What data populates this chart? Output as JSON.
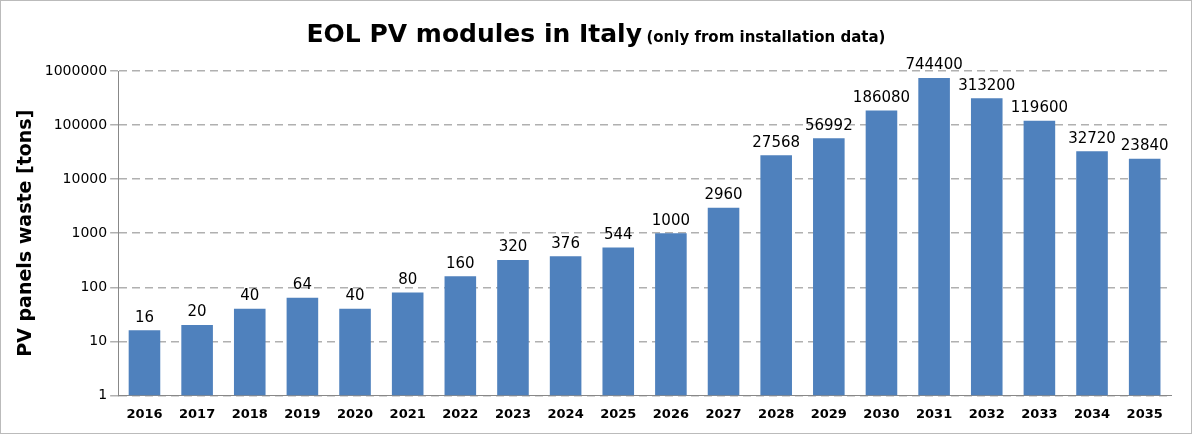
{
  "chart_data": {
    "type": "bar",
    "title": "EOL PV modules in Italy",
    "subtitle": "(only from installation data)",
    "ylabel": "PV panels waste [tons]",
    "categories": [
      "2016",
      "2017",
      "2018",
      "2019",
      "2020",
      "2021",
      "2022",
      "2023",
      "2024",
      "2025",
      "2026",
      "2027",
      "2028",
      "2029",
      "2030",
      "2031",
      "2032",
      "2033",
      "2034",
      "2035"
    ],
    "values": [
      16,
      20,
      40,
      64,
      40,
      80,
      160,
      320,
      376,
      544,
      1000,
      2960,
      27568,
      56992,
      186080,
      744400,
      313200,
      119600,
      32720,
      23840
    ],
    "color": "#4f81bd",
    "log": "y",
    "ylim": [
      1,
      1000000
    ],
    "yticks": [
      1,
      10,
      100,
      1000,
      10000,
      100000,
      1000000
    ],
    "grid": "y",
    "data_labels": true
  }
}
